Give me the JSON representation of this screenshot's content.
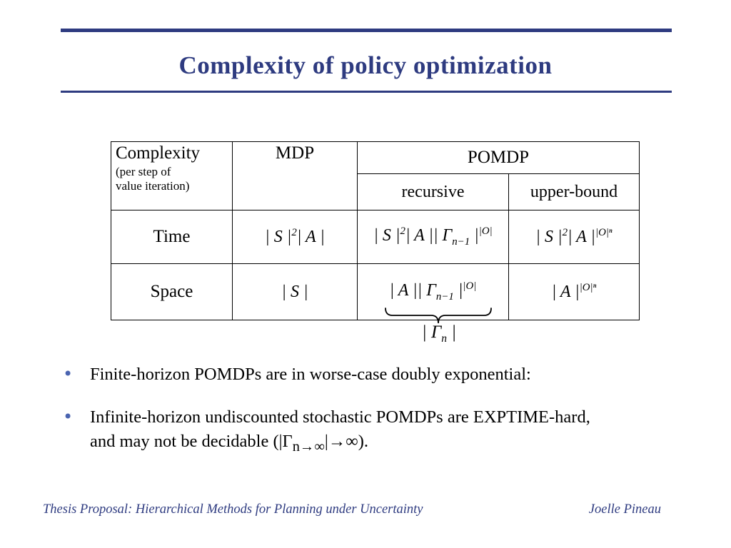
{
  "slide": {
    "title": "Complexity of policy optimization",
    "bullet_glyph": "•",
    "footer_left": "Thesis Proposal: Hierarchical Methods for Planning under Uncertainty",
    "footer_right": "Joelle Pineau"
  },
  "table": {
    "header": {
      "complexity_title": "Complexity",
      "complexity_sub": "(per step of\nvalue iteration)",
      "mdp": "MDP",
      "pomdp": "POMDP",
      "recursive": "recursive",
      "upper_bound": "upper-bound"
    },
    "rows": {
      "time_label": "Time",
      "space_label": "Space"
    },
    "math": {
      "time_mdp": "| S |^{2}| A |",
      "time_recursive": "| S |^{2}| A || Γ_{n−1} |^{|O|}",
      "time_upper": "| S |^{2}| A |^{|O|ⁿ}",
      "space_mdp": "| S |",
      "space_recursive": "| A || Γ_{n−1} |^{|O|}",
      "space_upper": "| A |^{|O|ⁿ}",
      "brace_label": "| Γ_{n} |"
    }
  },
  "bullets": [
    {
      "text": "Finite-horizon POMDPs are in worse-case doubly exponential:"
    },
    {
      "line1": "Infinite-horizon undiscounted stochastic POMDPs are EXPTIME-hard,",
      "line2_math": "and may not be decidable (|Γ_{n→∞}|→∞)."
    }
  ],
  "colors": {
    "accent": "#2e3b80",
    "bullet": "#4a64b0",
    "table_border": "#000000"
  }
}
